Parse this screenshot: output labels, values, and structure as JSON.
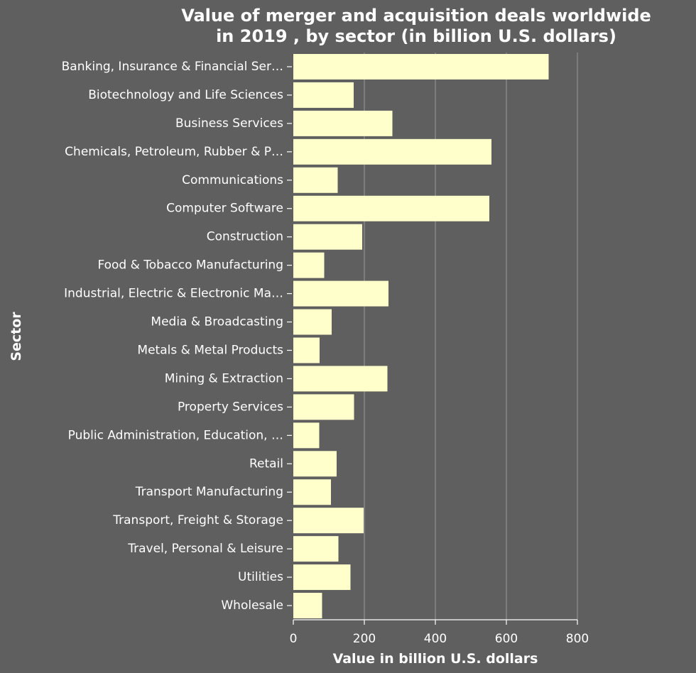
{
  "colors": {
    "background": "#5f5f5f",
    "bar": "#ffffcc",
    "grid": "#9a9a9a",
    "text": "#ffffff"
  },
  "chart_data": {
    "type": "bar",
    "orientation": "horizontal",
    "title_lines": [
      "Value of merger and acquisition deals worldwide",
      "in 2019 , by sector (in billion U.S. dollars)"
    ],
    "xlabel": "Value in billion U.S. dollars",
    "ylabel": "Sector",
    "xlim": [
      0,
      800
    ],
    "xticks": [
      0,
      200,
      400,
      600,
      800
    ],
    "grid": "vertical",
    "legend": "none",
    "categories": [
      "Banking, Insurance & Financial Ser…",
      "Biotechnology and Life Sciences",
      "Business Services",
      "Chemicals, Petroleum, Rubber & P…",
      "Communications",
      "Computer Software",
      "Construction",
      "Food & Tobacco Manufacturing",
      "Industrial, Electric & Electronic Ma…",
      "Media & Broadcasting",
      "Metals & Metal Products",
      "Mining & Extraction",
      "Property Services",
      "Public Administration, Education, …",
      "Retail",
      "Transport Manufacturing",
      "Transport, Freight & Storage",
      "Travel, Personal & Leisure",
      "Utilities",
      "Wholesale"
    ],
    "values": [
      719,
      170,
      279,
      558,
      125,
      552,
      194,
      87,
      268,
      108,
      74,
      265,
      171,
      73,
      122,
      106,
      198,
      127,
      161,
      81
    ]
  }
}
